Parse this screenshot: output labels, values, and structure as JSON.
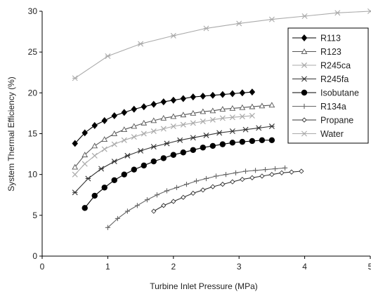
{
  "chart_data": {
    "type": "line",
    "title": "",
    "xlabel": "Turbine Inlet Pressure (MPa)",
    "ylabel": "System Thermal Efficiency (%)",
    "xlim": [
      0,
      5
    ],
    "ylim": [
      0,
      30
    ],
    "xticks": [
      "0",
      "1",
      "2",
      "3",
      "4",
      "5"
    ],
    "yticks": [
      "0",
      "5",
      "10",
      "15",
      "20",
      "25",
      "30"
    ],
    "grid": false,
    "legend": "top-right",
    "series": [
      {
        "name": "R113",
        "marker": "diamond-filled",
        "color": "#000000",
        "x": [
          0.5,
          0.65,
          0.8,
          0.95,
          1.1,
          1.25,
          1.4,
          1.55,
          1.7,
          1.85,
          2.0,
          2.15,
          2.3,
          2.45,
          2.6,
          2.75,
          2.9,
          3.05,
          3.2
        ],
        "y": [
          13.8,
          15.1,
          16.0,
          16.6,
          17.2,
          17.6,
          18.0,
          18.3,
          18.6,
          18.9,
          19.1,
          19.3,
          19.5,
          19.6,
          19.7,
          19.8,
          19.9,
          20.0,
          20.1
        ]
      },
      {
        "name": "R123",
        "marker": "triangle-open",
        "color": "#555555",
        "x": [
          0.5,
          0.65,
          0.8,
          0.95,
          1.1,
          1.25,
          1.4,
          1.55,
          1.7,
          1.85,
          2.0,
          2.15,
          2.3,
          2.45,
          2.6,
          2.75,
          2.9,
          3.05,
          3.2,
          3.35,
          3.5
        ],
        "y": [
          10.9,
          12.4,
          13.5,
          14.3,
          15.0,
          15.5,
          15.9,
          16.3,
          16.6,
          16.9,
          17.1,
          17.3,
          17.5,
          17.7,
          17.8,
          18.0,
          18.1,
          18.2,
          18.3,
          18.4,
          18.5
        ]
      },
      {
        "name": "R245ca",
        "marker": "x",
        "color": "#aaaaaa",
        "x": [
          0.5,
          0.65,
          0.8,
          0.95,
          1.1,
          1.25,
          1.4,
          1.55,
          1.7,
          1.85,
          2.0,
          2.15,
          2.3,
          2.45,
          2.6,
          2.75,
          2.9,
          3.05,
          3.2
        ],
        "y": [
          10.0,
          11.3,
          12.3,
          13.1,
          13.7,
          14.2,
          14.6,
          15.0,
          15.3,
          15.6,
          15.9,
          16.1,
          16.3,
          16.5,
          16.7,
          16.9,
          17.0,
          17.1,
          17.2
        ]
      },
      {
        "name": "R245fa",
        "marker": "asterisk",
        "color": "#333333",
        "x": [
          0.5,
          0.7,
          0.9,
          1.1,
          1.3,
          1.5,
          1.7,
          1.9,
          2.1,
          2.3,
          2.5,
          2.7,
          2.9,
          3.1,
          3.3,
          3.5
        ],
        "y": [
          7.8,
          9.5,
          10.7,
          11.6,
          12.3,
          12.9,
          13.4,
          13.8,
          14.2,
          14.5,
          14.8,
          15.1,
          15.3,
          15.5,
          15.7,
          15.9
        ]
      },
      {
        "name": "Isobutane",
        "marker": "circle-filled",
        "color": "#000000",
        "x": [
          0.65,
          0.8,
          0.95,
          1.1,
          1.25,
          1.4,
          1.55,
          1.7,
          1.85,
          2.0,
          2.15,
          2.3,
          2.45,
          2.6,
          2.75,
          2.9,
          3.05,
          3.2,
          3.35,
          3.5
        ],
        "y": [
          5.9,
          7.4,
          8.4,
          9.3,
          10.0,
          10.6,
          11.1,
          11.6,
          12.0,
          12.4,
          12.7,
          13.0,
          13.3,
          13.5,
          13.7,
          13.9,
          14.0,
          14.1,
          14.2,
          14.2
        ]
      },
      {
        "name": "R134a",
        "marker": "plus",
        "color": "#666666",
        "x": [
          1.0,
          1.15,
          1.3,
          1.45,
          1.6,
          1.75,
          1.9,
          2.05,
          2.2,
          2.35,
          2.5,
          2.65,
          2.8,
          2.95,
          3.1,
          3.25,
          3.4,
          3.55,
          3.7
        ],
        "y": [
          3.5,
          4.6,
          5.5,
          6.2,
          6.9,
          7.5,
          8.0,
          8.4,
          8.8,
          9.2,
          9.5,
          9.8,
          10.0,
          10.2,
          10.4,
          10.5,
          10.6,
          10.7,
          10.8
        ]
      },
      {
        "name": "Propane",
        "marker": "diamond-open",
        "color": "#333333",
        "x": [
          1.7,
          1.85,
          2.0,
          2.15,
          2.3,
          2.45,
          2.6,
          2.75,
          2.9,
          3.05,
          3.2,
          3.35,
          3.5,
          3.65,
          3.8,
          3.95
        ],
        "y": [
          5.5,
          6.2,
          6.7,
          7.2,
          7.7,
          8.1,
          8.5,
          8.8,
          9.1,
          9.4,
          9.6,
          9.8,
          10.0,
          10.2,
          10.3,
          10.4
        ]
      },
      {
        "name": "Water",
        "marker": "asterisk",
        "color": "#aaaaaa",
        "x": [
          0.5,
          1.0,
          1.5,
          2.0,
          2.5,
          3.0,
          3.5,
          4.0,
          4.5,
          5.0
        ],
        "y": [
          21.8,
          24.5,
          26.0,
          27.0,
          27.9,
          28.5,
          29.0,
          29.4,
          29.8,
          30.0
        ]
      }
    ]
  }
}
